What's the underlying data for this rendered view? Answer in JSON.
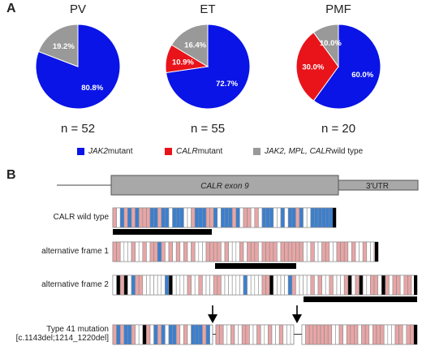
{
  "panel_a": {
    "letter": "A"
  },
  "panel_b": {
    "letter": "B"
  },
  "colors": {
    "jak2": "#0a14e6",
    "calr": "#e8141a",
    "wildtype": "#999999",
    "frame_pink": "#e8a5a5",
    "frame_blue": "#3a7fd0",
    "frame_black": "#000000",
    "exon": "#a8a8a8"
  },
  "chart_data": [
    {
      "type": "pie",
      "title": "PV",
      "n_label": "n = 52",
      "slices": [
        {
          "label": "JAK2 mutant",
          "value": 80.8,
          "text": "80.8%"
        },
        {
          "label": "CALR mutant",
          "value": 0,
          "text": ""
        },
        {
          "label": "JAK2, MPL, CALR wild type",
          "value": 19.2,
          "text": "19.2%"
        }
      ]
    },
    {
      "type": "pie",
      "title": "ET",
      "n_label": "n = 55",
      "slices": [
        {
          "label": "JAK2 mutant",
          "value": 72.7,
          "text": "72.7%"
        },
        {
          "label": "CALR mutant",
          "value": 10.9,
          "text": "10.9%"
        },
        {
          "label": "JAK2, MPL, CALR wild type",
          "value": 16.4,
          "text": "16.4%"
        }
      ]
    },
    {
      "type": "pie",
      "title": "PMF",
      "n_label": "n = 20",
      "slices": [
        {
          "label": "JAK2 mutant",
          "value": 60.0,
          "text": "60.0%"
        },
        {
          "label": "CALR mutant",
          "value": 30.0,
          "text": "30.0%"
        },
        {
          "label": "JAK2, MPL, CALR wild type",
          "value": 10.0,
          "text": "10.0%"
        }
      ]
    }
  ],
  "legend": [
    {
      "gene": "JAK2",
      "rest": " mutant",
      "color_key": "jak2"
    },
    {
      "gene": "CALR",
      "rest": " mutant",
      "color_key": "calr"
    },
    {
      "gene": "JAK2, MPL, CALR",
      "rest": " wild type",
      "color_key": "wildtype"
    }
  ],
  "gene_diagram": {
    "exon_label": "CALR exon 9",
    "utr_label": "3'UTR"
  },
  "tracks": [
    {
      "label": "CALR wild type"
    },
    {
      "label": "alternative frame 1"
    },
    {
      "label": "alternative frame 2"
    },
    {
      "label_line1": "Type 41 mutation",
      "label_line2": "[c.1143del;1214_1220del]"
    }
  ]
}
